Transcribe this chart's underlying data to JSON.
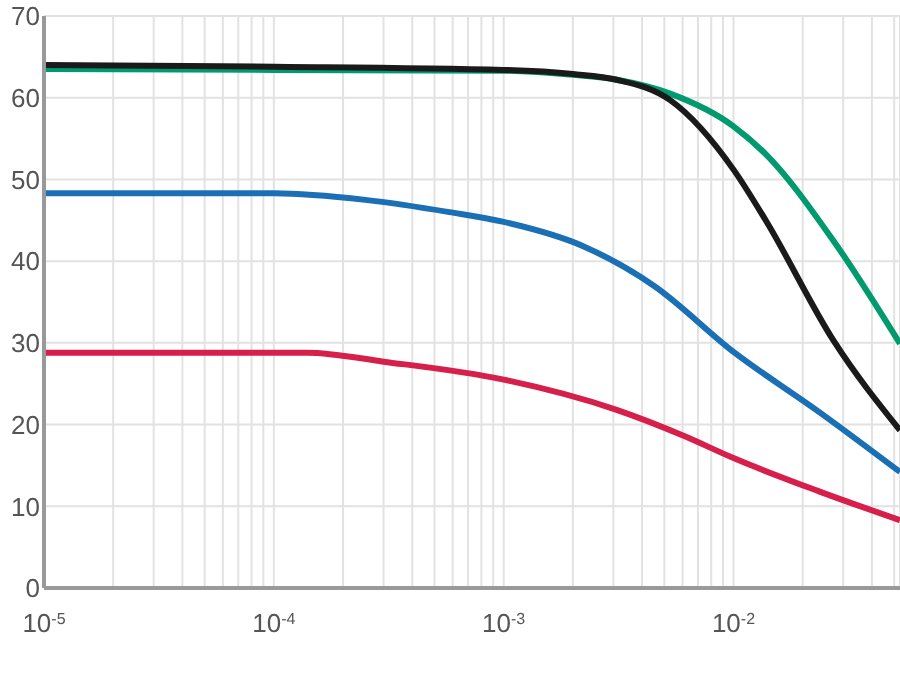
{
  "chart_data": {
    "type": "line",
    "log": "x",
    "grid": true,
    "marker": "none",
    "line_style": "solid",
    "xlim": [
      1e-05,
      0.053
    ],
    "xticks": [
      {
        "value": 1e-05,
        "label": "10$^{-5}$"
      },
      {
        "value": 2e-05,
        "label": null
      },
      {
        "value": 3e-05,
        "label": null
      },
      {
        "value": 4e-05,
        "label": null
      },
      {
        "value": 5e-05,
        "label": null
      },
      {
        "value": 6e-05,
        "label": null
      },
      {
        "value": 7e-05,
        "label": null
      },
      {
        "value": 8e-05,
        "label": null
      },
      {
        "value": 9e-05,
        "label": null
      },
      {
        "value": 0.0001,
        "label": "10$^{-4}$"
      },
      {
        "value": 0.0002,
        "label": null
      },
      {
        "value": 0.0003,
        "label": null
      },
      {
        "value": 0.0004,
        "label": null
      },
      {
        "value": 0.0005,
        "label": null
      },
      {
        "value": 0.0006,
        "label": null
      },
      {
        "value": 0.0007,
        "label": null
      },
      {
        "value": 0.0008,
        "label": null
      },
      {
        "value": 0.0009,
        "label": null
      },
      {
        "value": 0.001,
        "label": "10$^{-3}$"
      },
      {
        "value": 0.002,
        "label": null
      },
      {
        "value": 0.003,
        "label": null
      },
      {
        "value": 0.004,
        "label": null
      },
      {
        "value": 0.005,
        "label": null
      },
      {
        "value": 0.006,
        "label": null
      },
      {
        "value": 0.007,
        "label": null
      },
      {
        "value": 0.008,
        "label": null
      },
      {
        "value": 0.009,
        "label": null
      },
      {
        "value": 0.01,
        "label": "10$^{-2}$"
      },
      {
        "value": 0.02,
        "label": null
      },
      {
        "value": 0.03,
        "label": null
      },
      {
        "value": 0.04,
        "label": null
      },
      {
        "value": 0.05,
        "label": null
      }
    ],
    "ylim": [
      0,
      70
    ],
    "yticks": [
      0,
      10,
      20,
      30,
      40,
      50,
      60,
      70
    ],
    "series": [
      {
        "color": "#009a6e",
        "x": [
          1e-05,
          0.0001,
          0.001,
          0.002,
          0.0031,
          0.0053,
          0.01,
          0.0138,
          0.0272,
          0.053
        ],
        "values": [
          63.5,
          63.4,
          63.3,
          62.8,
          62.2,
          60.5,
          56.5,
          53.1,
          42.5,
          29.9
        ]
      },
      {
        "color": "#1a1a1a",
        "x": [
          1e-05,
          0.0001,
          0.001,
          0.002,
          0.0031,
          0.0053,
          0.01,
          0.0138,
          0.0272,
          0.053
        ],
        "values": [
          64,
          63.8,
          63.4,
          62.9,
          62.2,
          59.7,
          51.2,
          45,
          30.3,
          19.3
        ]
      },
      {
        "color": "#1a6fb5",
        "x": [
          1e-05,
          0.0001,
          0.00025,
          0.00058,
          0.001,
          0.00223,
          0.0045,
          0.01,
          0.0237,
          0.053
        ],
        "values": [
          48.3,
          48.3,
          47.5,
          46,
          44.8,
          41.8,
          37,
          28.9,
          21.5,
          14.2
        ]
      },
      {
        "color": "#d6204b",
        "x": [
          1e-05,
          0.00014,
          0.0003,
          0.001,
          0.0031,
          0.0061,
          0.01,
          0.0237,
          0.053
        ],
        "values": [
          28.8,
          28.8,
          27.7,
          25.5,
          21.8,
          18.6,
          15.9,
          11.8,
          8.3
        ]
      }
    ]
  }
}
